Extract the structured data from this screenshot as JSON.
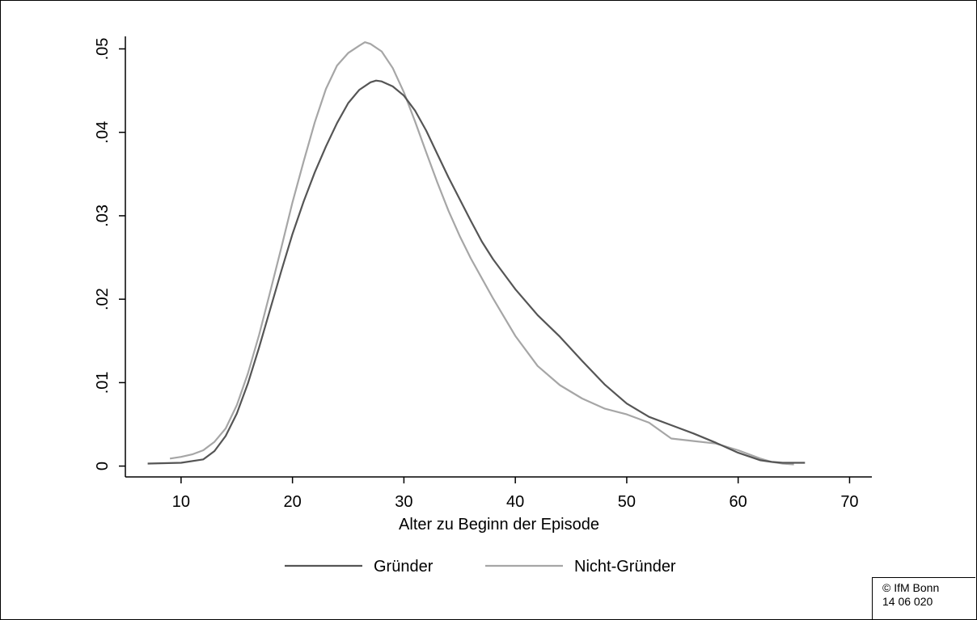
{
  "chart_data": {
    "type": "line",
    "xlabel": "Alter zu Beginn der Episode",
    "ylabel": "",
    "xlim": [
      5,
      72
    ],
    "ylim": [
      -0.0013,
      0.0515
    ],
    "x_ticks": [
      10,
      20,
      30,
      40,
      50,
      60,
      70
    ],
    "x_tick_labels": [
      "10",
      "20",
      "30",
      "40",
      "50",
      "60",
      "70"
    ],
    "y_ticks": [
      0,
      0.01,
      0.02,
      0.03,
      0.04,
      0.05
    ],
    "y_tick_labels": [
      "0",
      ".01",
      ".02",
      ".03",
      ".04",
      ".05"
    ],
    "grid": false,
    "legend": "bottom",
    "series": [
      {
        "name": "Gründer",
        "color": "#555555",
        "x": [
          7,
          10,
          12,
          13,
          14,
          15,
          16,
          17,
          18,
          19,
          20,
          21,
          22,
          23,
          24,
          25,
          26,
          27,
          27.5,
          28,
          29,
          30,
          31,
          32,
          33,
          34,
          35,
          36,
          37,
          38,
          40,
          42,
          44,
          46,
          48,
          50,
          52,
          54,
          56,
          58,
          60,
          62,
          63,
          64,
          66
        ],
        "y": [
          0.0003,
          0.0004,
          0.0008,
          0.0018,
          0.0036,
          0.0063,
          0.0099,
          0.0142,
          0.0188,
          0.0234,
          0.0278,
          0.0317,
          0.0352,
          0.0383,
          0.0411,
          0.0435,
          0.0451,
          0.046,
          0.0462,
          0.0461,
          0.0455,
          0.0444,
          0.0426,
          0.0402,
          0.0374,
          0.0346,
          0.032,
          0.0294,
          0.0269,
          0.0248,
          0.0212,
          0.0181,
          0.0155,
          0.0126,
          0.0098,
          0.0075,
          0.0059,
          0.0049,
          0.0039,
          0.0028,
          0.0016,
          0.0007,
          0.0005,
          0.0004,
          0.0004
        ]
      },
      {
        "name": "Nicht-Gründer",
        "color": "#a6a6a6",
        "x": [
          9,
          10,
          11,
          12,
          13,
          14,
          15,
          16,
          17,
          18,
          19,
          20,
          21,
          22,
          23,
          24,
          25,
          26,
          26.5,
          27,
          28,
          29,
          30,
          31,
          32,
          33,
          34,
          35,
          36,
          37,
          38,
          40,
          42,
          44,
          46,
          48,
          50,
          52,
          54,
          56,
          58,
          60,
          62,
          63,
          64,
          65
        ],
        "y": [
          0.0009,
          0.0011,
          0.0014,
          0.0019,
          0.0029,
          0.0045,
          0.0073,
          0.0111,
          0.0157,
          0.0209,
          0.0262,
          0.0316,
          0.0365,
          0.0412,
          0.0452,
          0.048,
          0.0495,
          0.0504,
          0.0508,
          0.0506,
          0.0497,
          0.0477,
          0.0448,
          0.0413,
          0.0376,
          0.034,
          0.0306,
          0.0276,
          0.0249,
          0.0225,
          0.0201,
          0.0156,
          0.012,
          0.0097,
          0.0081,
          0.0069,
          0.0062,
          0.0052,
          0.0033,
          0.003,
          0.0027,
          0.0019,
          0.0009,
          0.0005,
          0.0003,
          0.0002
        ]
      }
    ]
  },
  "credit": {
    "line1": "© IfM Bonn",
    "line2": "14 06 020"
  }
}
